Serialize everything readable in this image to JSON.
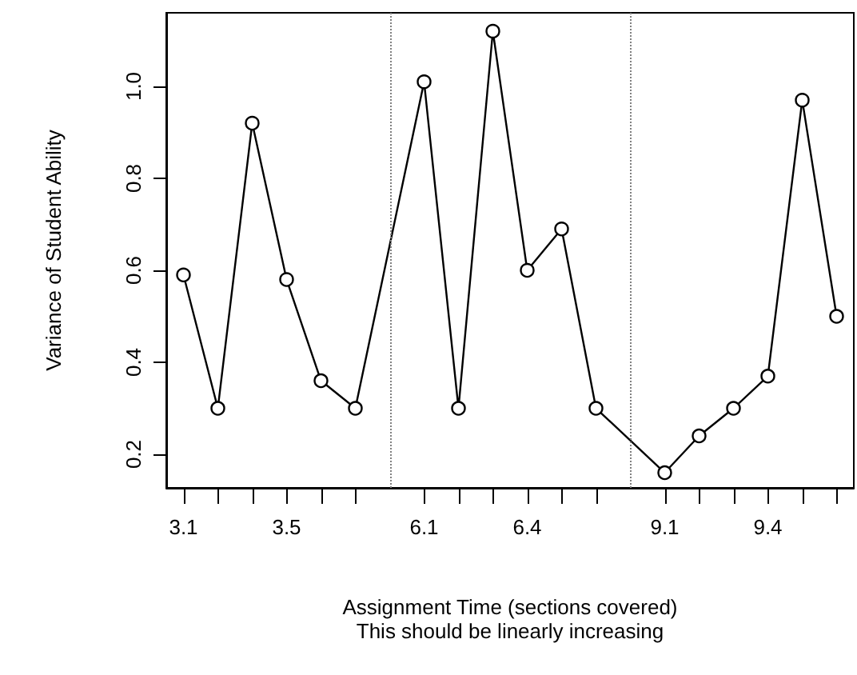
{
  "chart_data": {
    "type": "line",
    "xlabel": "Assignment Time (sections covered)",
    "ylabel": "Variance of Student Ability",
    "annotations": [
      "This should be linearly increasing"
    ],
    "categories": [
      "3.1",
      null,
      null,
      "3.5",
      null,
      null,
      null,
      "6.1",
      null,
      null,
      "6.4",
      null,
      null,
      null,
      "9.1",
      null,
      null,
      "9.4",
      null,
      null
    ],
    "values": [
      0.59,
      0.3,
      0.92,
      0.58,
      0.36,
      0.3,
      null,
      1.01,
      0.3,
      1.12,
      0.6,
      0.69,
      0.3,
      null,
      0.16,
      0.24,
      0.3,
      0.37,
      0.97,
      0.5
    ],
    "color": "#000000",
    "marker": "circle",
    "line_style": "solid",
    "ylim": [
      0.127,
      1.16
    ],
    "yticks": [
      0.2,
      0.4,
      0.6,
      0.8,
      {
        "value": 1,
        "label": "1.0"
      }
    ]
  }
}
